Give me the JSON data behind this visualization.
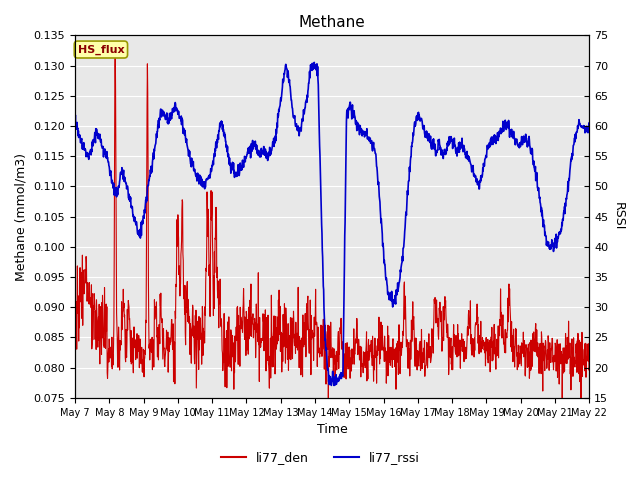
{
  "title": "Methane",
  "xlabel": "Time",
  "ylabel_left": "Methane (mmol/m3)",
  "ylabel_right": "RSSI",
  "ylim_left": [
    0.075,
    0.135
  ],
  "ylim_right": [
    15,
    75
  ],
  "yticks_left": [
    0.075,
    0.08,
    0.085,
    0.09,
    0.095,
    0.1,
    0.105,
    0.11,
    0.115,
    0.12,
    0.125,
    0.13,
    0.135
  ],
  "yticks_right": [
    15,
    20,
    25,
    30,
    35,
    40,
    45,
    50,
    55,
    60,
    65,
    70,
    75
  ],
  "color_red": "#cc0000",
  "color_blue": "#0000cc",
  "bg_color": "#e8e8e8",
  "legend_label1": "li77_den",
  "legend_label2": "li77_rssi",
  "annotation_text": "HS_flux",
  "annotation_bg": "#ffffaa",
  "annotation_border": "#999900",
  "x_tick_labels": [
    "May 7",
    "May 8",
    "May 9",
    "May 10",
    "May 11",
    "May 12",
    "May 13",
    "May 14",
    "May 15",
    "May 16",
    "May 17",
    "May 18",
    "May 19",
    "May 20",
    "May 21",
    "May 22"
  ],
  "num_days": 16,
  "points_per_day": 96
}
